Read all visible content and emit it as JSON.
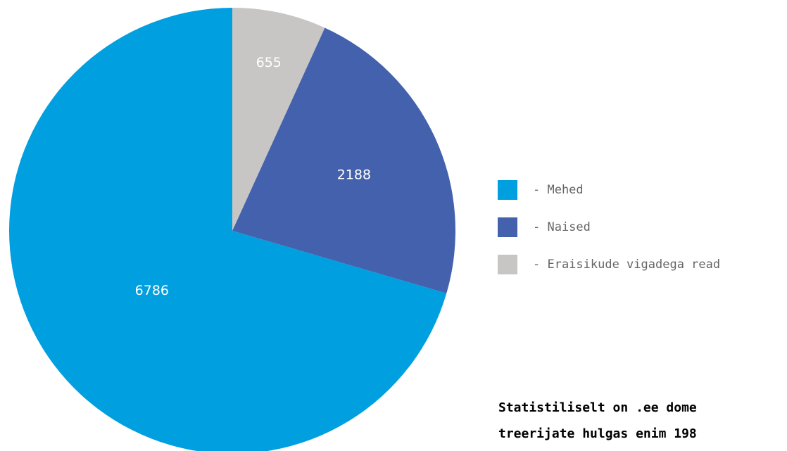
{
  "chart_data": {
    "type": "pie",
    "series": [
      {
        "name": "- Mehed",
        "color": "#009fe0",
        "values": [
          6786
        ]
      },
      {
        "name": "- Naised",
        "color": "#4361ac",
        "values": [
          2188
        ]
      },
      {
        "name": "- Eraisikude vigadega read",
        "color": "#c8c6c4",
        "values": [
          655
        ]
      }
    ],
    "annotations": [
      "Statistiliselt on .ee dome",
      "treerijate hulgas enim 198"
    ]
  }
}
